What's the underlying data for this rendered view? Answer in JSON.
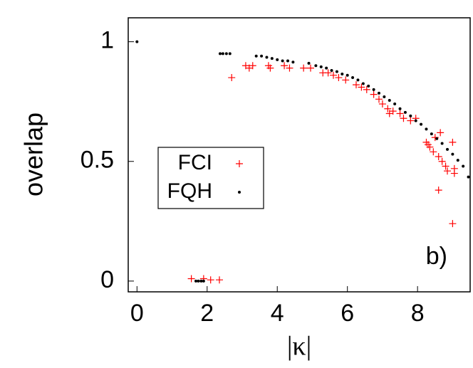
{
  "chart_data": {
    "type": "scatter",
    "xlabel": "|κ|",
    "ylabel": "overlap",
    "annotation": "b)",
    "xlim": [
      -0.25,
      9.5
    ],
    "ylim": [
      -0.045,
      1.1
    ],
    "xticks": [
      0,
      2,
      4,
      6,
      8
    ],
    "yticks": [
      0,
      0.5,
      1
    ],
    "legend": "middle left",
    "series": [
      {
        "name": "FCI",
        "color": "#ff0000",
        "marker": "plus",
        "x": [
          1.55,
          1.9,
          2.1,
          2.35,
          2.7,
          3.1,
          3.2,
          3.3,
          3.75,
          3.8,
          4.2,
          4.35,
          4.75,
          4.95,
          5.3,
          5.45,
          5.6,
          5.75,
          5.95,
          6.25,
          6.4,
          6.55,
          6.75,
          6.9,
          7.0,
          7.15,
          7.2,
          7.3,
          7.5,
          7.6,
          7.8,
          7.95,
          8.25,
          8.3,
          8.35,
          8.45,
          8.5,
          8.6,
          8.65,
          8.7,
          8.8,
          8.85,
          9.0,
          9.05,
          9.05,
          8.6,
          9.0
        ],
        "values": [
          0.01,
          0.01,
          0.005,
          0.005,
          0.85,
          0.9,
          0.89,
          0.9,
          0.9,
          0.89,
          0.9,
          0.89,
          0.89,
          0.89,
          0.87,
          0.87,
          0.86,
          0.85,
          0.84,
          0.82,
          0.81,
          0.8,
          0.78,
          0.76,
          0.74,
          0.72,
          0.7,
          0.71,
          0.7,
          0.68,
          0.67,
          0.68,
          0.58,
          0.57,
          0.56,
          0.54,
          0.6,
          0.52,
          0.62,
          0.5,
          0.48,
          0.46,
          0.58,
          0.47,
          0.45,
          0.38,
          0.24
        ]
      },
      {
        "name": "FQH",
        "color": "#000000",
        "marker": "dot",
        "x": [
          0,
          1.68,
          1.75,
          1.83,
          1.9,
          2.37,
          2.45,
          2.55,
          2.65,
          3.4,
          3.55,
          3.7,
          3.85,
          4.0,
          4.15,
          4.3,
          4.45,
          4.9,
          5.1,
          5.25,
          5.4,
          5.55,
          5.7,
          5.85,
          6.0,
          6.15,
          6.3,
          6.45,
          6.6,
          6.75,
          6.9,
          7.05,
          7.2,
          7.35,
          7.5,
          7.65,
          7.8,
          7.95,
          8.1,
          8.25,
          8.4,
          8.55,
          8.7,
          8.85,
          9.0,
          9.15,
          9.3,
          9.45
        ],
        "values": [
          1.0,
          0.0,
          0.0,
          0.0,
          0.0,
          0.95,
          0.95,
          0.95,
          0.95,
          0.94,
          0.94,
          0.935,
          0.93,
          0.925,
          0.92,
          0.92,
          0.915,
          0.91,
          0.9,
          0.895,
          0.89,
          0.88,
          0.875,
          0.865,
          0.86,
          0.85,
          0.84,
          0.825,
          0.815,
          0.8,
          0.785,
          0.77,
          0.755,
          0.74,
          0.72,
          0.705,
          0.69,
          0.67,
          0.655,
          0.635,
          0.615,
          0.595,
          0.575,
          0.55,
          0.53,
          0.505,
          0.48,
          0.435
        ]
      }
    ]
  }
}
